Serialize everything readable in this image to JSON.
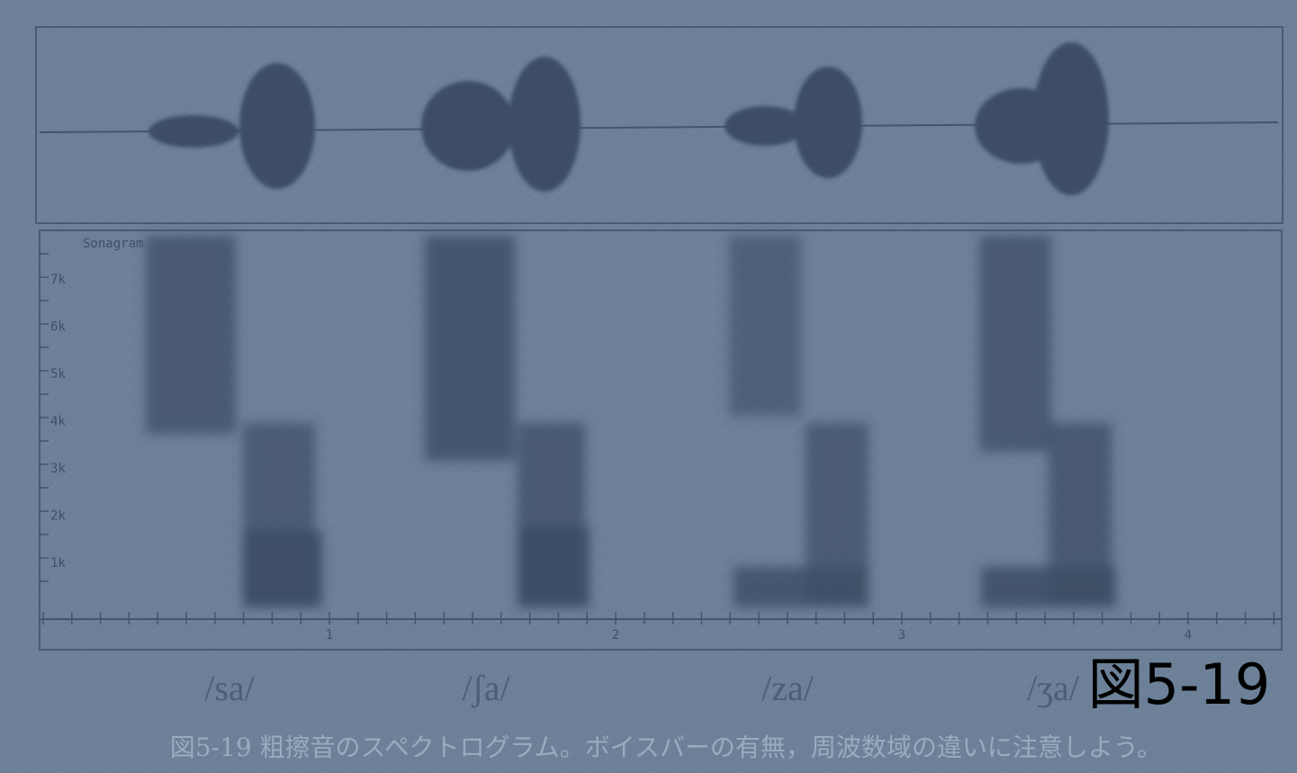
{
  "figure": {
    "panel_label": "Sonagram",
    "frequency_labels": [
      "7k",
      "6k",
      "5k",
      "4k",
      "3k",
      "2k",
      "1k"
    ],
    "time_labels": [
      "1",
      "2",
      "3",
      "4"
    ],
    "syllables": [
      "/sa/",
      "/ʃa/",
      "/za/",
      "/ʒa/"
    ],
    "overlay_label": "図5-19",
    "caption": "図5-19  粗擦音のスペクトログラム。ボイスバーの有無，周波数域の違いに注意しよう。"
  }
}
